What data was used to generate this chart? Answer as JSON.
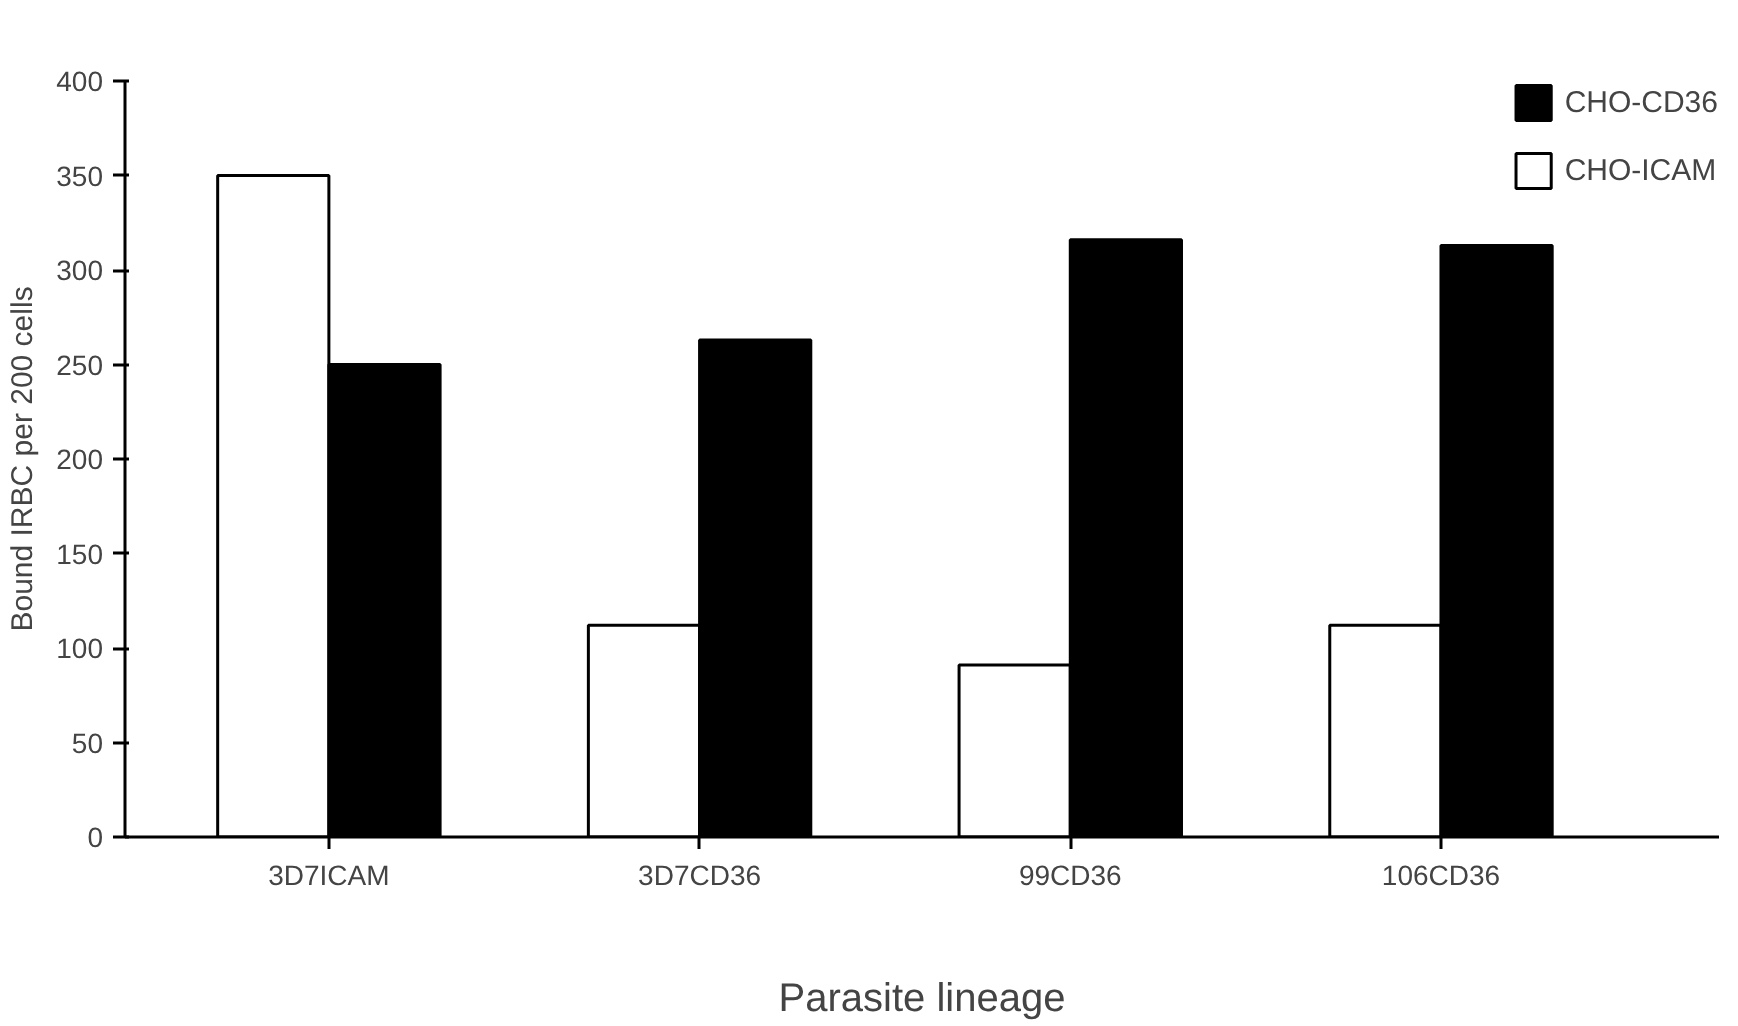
{
  "chart_data": {
    "type": "bar",
    "xlabel": "Parasite lineage",
    "ylabel": "Bound IRBC per 200 cells",
    "categories": [
      "3D7ICAM",
      "3D7CD36",
      "99CD36",
      "106CD36"
    ],
    "series": [
      {
        "name": "CHO-ICAM",
        "color": "#ffffff",
        "values": [
          350,
          112,
          91,
          112
        ]
      },
      {
        "name": "CHO-CD36",
        "color": "#000000",
        "values": [
          250,
          263,
          316,
          313
        ]
      }
    ],
    "ylim": [
      0,
      400
    ],
    "yticks": [
      0,
      50,
      100,
      150,
      200,
      250,
      300,
      350,
      400
    ],
    "grid": false,
    "legend": "top right"
  }
}
